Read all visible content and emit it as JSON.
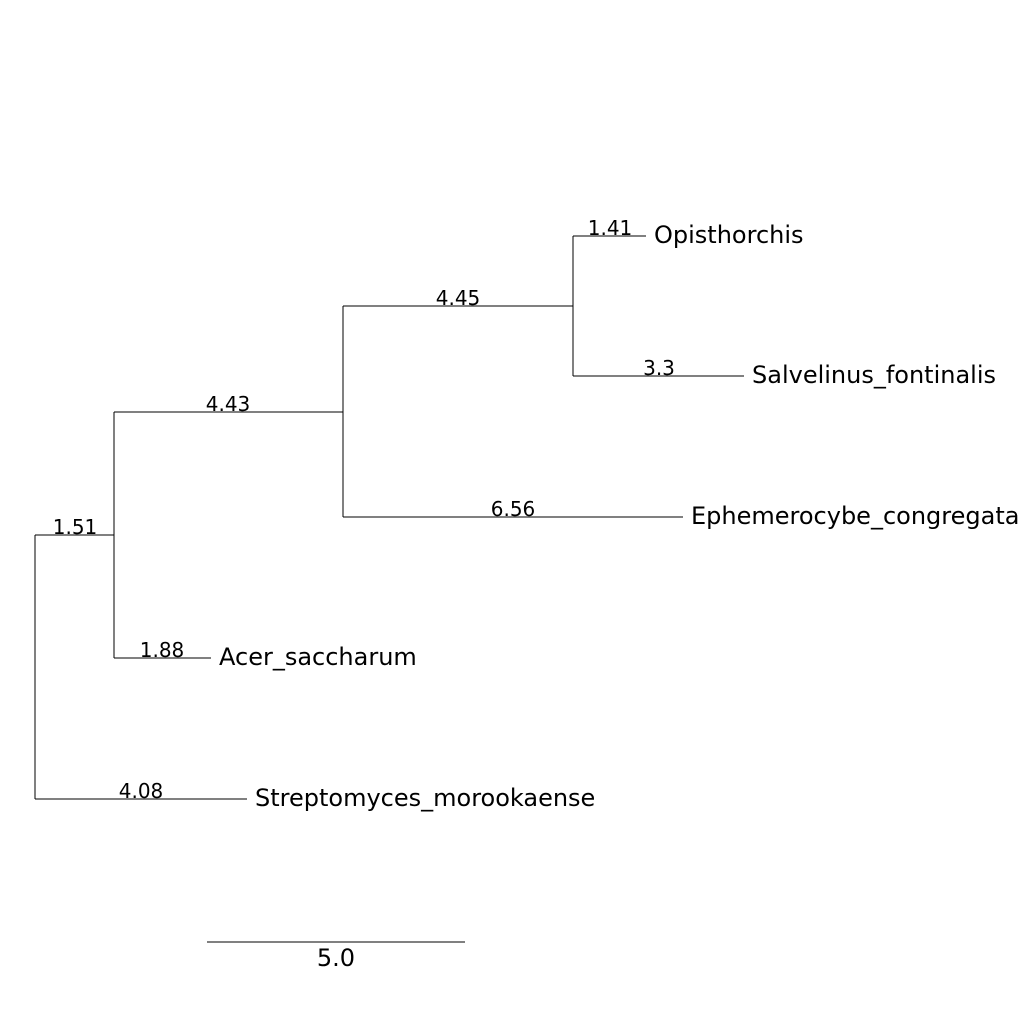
{
  "tree": {
    "leaves": {
      "opisthorchis": "Opisthorchis",
      "salvelinus": "Salvelinus_fontinalis",
      "ephemerocybe": "Ephemerocybe_congregata",
      "acer": "Acer_saccharum",
      "streptomyces": "Streptomyces_morookaense"
    },
    "branch_lengths": {
      "opisthorchis": "1.41",
      "salvelinus": "3.3",
      "clade_opis_salv": "4.45",
      "ephemerocybe": "6.56",
      "clade_main": "4.43",
      "acer": "1.88",
      "clade_acer_main": "1.51",
      "streptomyces": "4.08"
    },
    "scale_bar": {
      "label": "5.0"
    }
  },
  "colors": {
    "line": "#000000",
    "background": "#ffffff"
  }
}
